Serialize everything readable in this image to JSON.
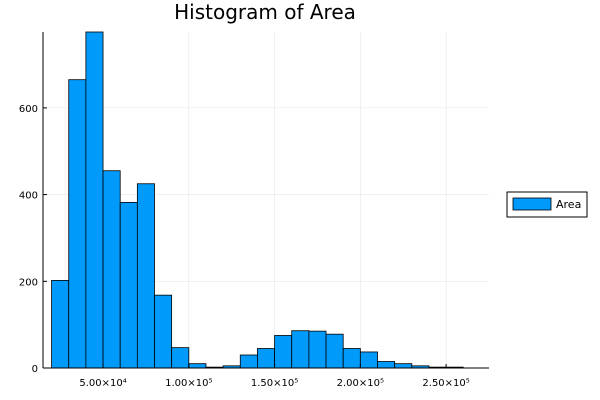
{
  "chart_data": {
    "type": "bar",
    "title": "Histogram of Area",
    "xlabel": "",
    "ylabel": "",
    "bin_start": 20000,
    "bin_width": 10000,
    "values": [
      202,
      665,
      775,
      455,
      382,
      425,
      168,
      47,
      10,
      2,
      5,
      30,
      45,
      75,
      86,
      85,
      78,
      45,
      37,
      15,
      10,
      5,
      2,
      2
    ],
    "xlim": [
      15000,
      275000
    ],
    "ylim": [
      0,
      775
    ],
    "xticks": [
      {
        "value": 50000,
        "label": "5.00×10⁴"
      },
      {
        "value": 100000,
        "label": "1.00×10⁵"
      },
      {
        "value": 150000,
        "label": "1.50×10⁵"
      },
      {
        "value": 200000,
        "label": "2.00×10⁵"
      },
      {
        "value": 250000,
        "label": "2.50×10⁵"
      }
    ],
    "yticks": [
      {
        "value": 0,
        "label": "0"
      },
      {
        "value": 200,
        "label": "200"
      },
      {
        "value": 400,
        "label": "400"
      },
      {
        "value": 600,
        "label": "600"
      }
    ],
    "grid": true,
    "legend": {
      "position": "right",
      "entries": [
        {
          "name": "Area",
          "color": "#009AFA"
        }
      ]
    },
    "bar_color": "#009AFA",
    "bar_edge_color": "#000000"
  }
}
